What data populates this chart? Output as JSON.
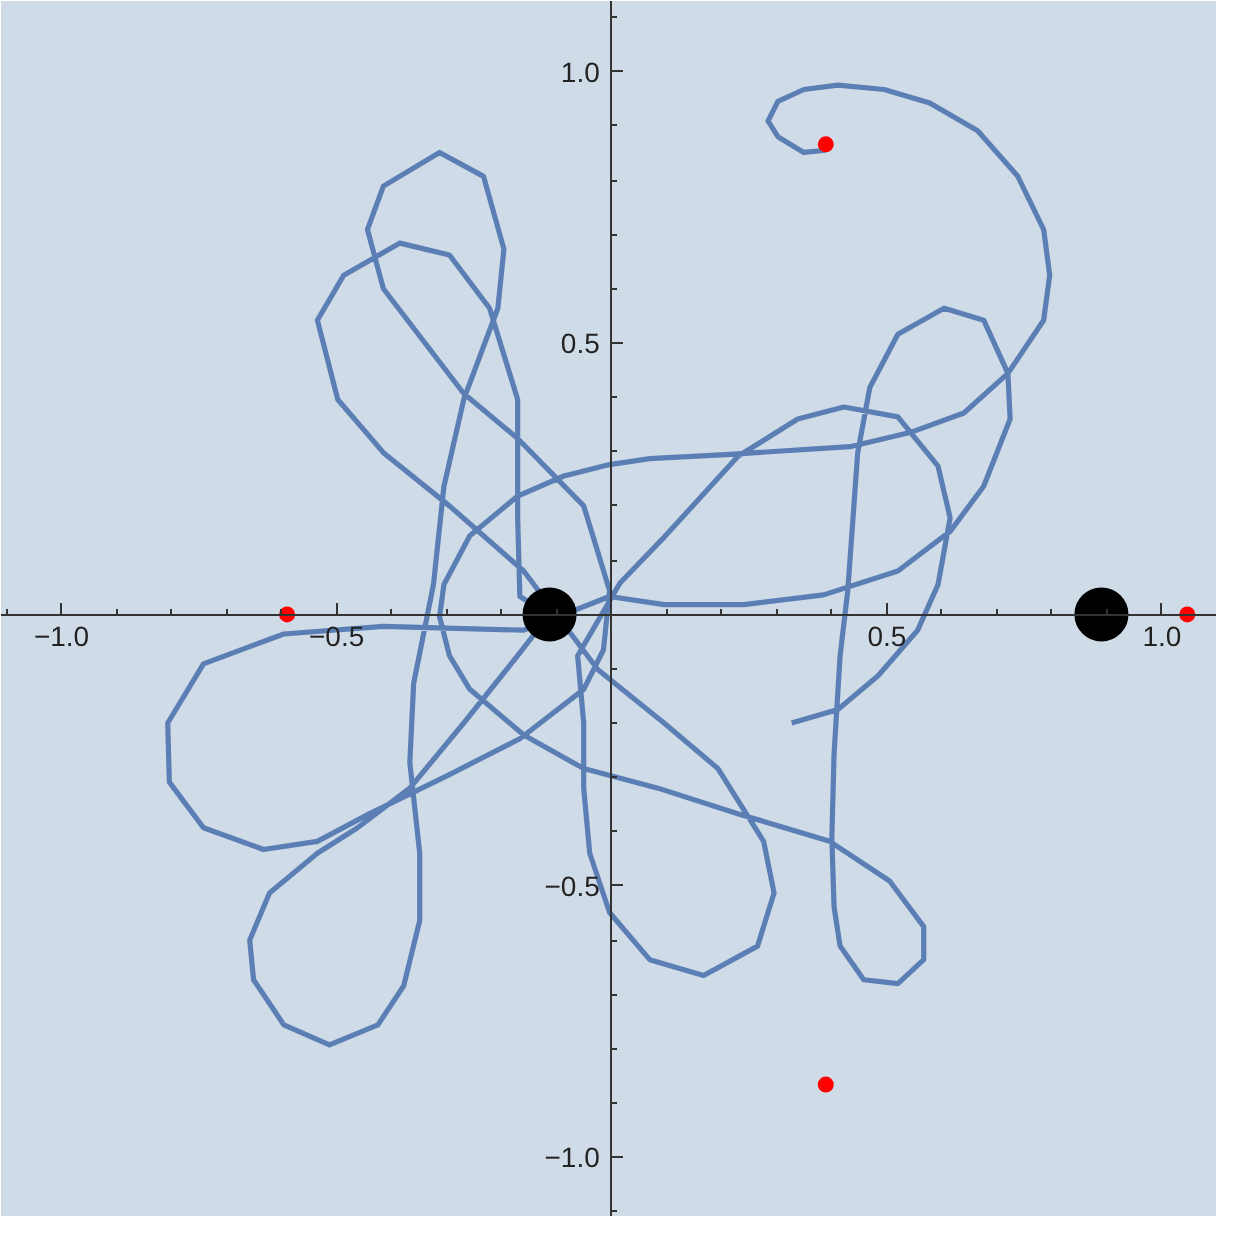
{
  "chart_data": {
    "type": "line",
    "xlim": [
      -1.11,
      1.1
    ],
    "ylim": [
      -1.11,
      1.13
    ],
    "xticks": [
      {
        "value": -1.1,
        "label": null
      },
      {
        "value": -1.0,
        "label": "−1.0"
      },
      {
        "value": -0.9,
        "label": null
      },
      {
        "value": -0.8,
        "label": null
      },
      {
        "value": -0.7,
        "label": null
      },
      {
        "value": -0.6,
        "label": null
      },
      {
        "value": -0.5,
        "label": "−0.5"
      },
      {
        "value": -0.4,
        "label": null
      },
      {
        "value": -0.3,
        "label": null
      },
      {
        "value": -0.2,
        "label": null
      },
      {
        "value": -0.1,
        "label": null
      },
      {
        "value": 0.1,
        "label": null
      },
      {
        "value": 0.2,
        "label": null
      },
      {
        "value": 0.3,
        "label": null
      },
      {
        "value": 0.4,
        "label": null
      },
      0.5,
      {
        "value": 0.6,
        "label": null
      },
      {
        "value": 0.7,
        "label": null
      },
      {
        "value": 0.8,
        "label": null
      },
      {
        "value": 0.9,
        "label": null
      },
      {
        "value": 1.0,
        "label": "1.0"
      },
      {
        "value": 1.1,
        "label": null
      }
    ],
    "yticks": [
      {
        "value": -1.1,
        "label": null
      },
      {
        "value": -1.0,
        "label": "−1.0"
      },
      {
        "value": -0.9,
        "label": null
      },
      {
        "value": -0.8,
        "label": null
      },
      {
        "value": -0.7,
        "label": null
      },
      {
        "value": -0.6,
        "label": null
      },
      {
        "value": -0.5,
        "label": "−0.5"
      },
      {
        "value": -0.4,
        "label": null
      },
      {
        "value": -0.3,
        "label": null
      },
      {
        "value": -0.2,
        "label": null
      },
      {
        "value": -0.1,
        "label": null
      },
      {
        "value": 0.1,
        "label": null
      },
      {
        "value": 0.2,
        "label": null
      },
      {
        "value": 0.3,
        "label": null
      },
      {
        "value": 0.4,
        "label": null
      },
      0.5,
      {
        "value": 0.6,
        "label": null
      },
      {
        "value": 0.7,
        "label": null
      },
      {
        "value": 0.8,
        "label": null
      },
      {
        "value": 0.9,
        "label": null
      },
      {
        "value": 1.0,
        "label": "1.0"
      },
      {
        "value": 1.1,
        "label": null
      }
    ],
    "grid": false,
    "series": [
      {
        "color": "#5b7fb5",
        "marker": "none",
        "line_style": "solid",
        "x": [
          0.389,
          0.349,
          0.302,
          0.284,
          0.302,
          0.349,
          0.411,
          0.495,
          0.578,
          0.665,
          0.738,
          0.785,
          0.796,
          0.785,
          0.72,
          0.64,
          0.542,
          0.433,
          0.215,
          0.069,
          -0.004,
          -0.087,
          -0.171,
          -0.258,
          -0.305,
          -0.313,
          -0.295,
          -0.258,
          -0.16,
          -0.051,
          0.084,
          0.229,
          0.396,
          0.505,
          0.567,
          0.567,
          0.52,
          0.458,
          0.415,
          0.404,
          0.4,
          0.404,
          0.415,
          0.429,
          0.447,
          0.469,
          0.52,
          0.604,
          0.676,
          0.72,
          0.724,
          0.676,
          0.615,
          0.52,
          0.385,
          0.24,
          0.095,
          -0.004,
          -0.16,
          -0.415,
          -0.596,
          -0.742,
          -0.807,
          -0.804,
          -0.742,
          -0.633,
          -0.535,
          -0.44,
          -0.295,
          -0.167,
          -0.051,
          -0.015,
          -0.004,
          -0.051,
          -0.171,
          -0.269,
          -0.415,
          -0.444,
          -0.415,
          -0.313,
          -0.233,
          -0.196,
          -0.207,
          -0.269,
          -0.305,
          -0.324,
          -0.36,
          -0.367,
          -0.349,
          -0.349,
          -0.378,
          -0.425,
          -0.513,
          -0.596,
          -0.651,
          -0.658,
          -0.622,
          -0.535,
          -0.462,
          -0.367,
          -0.269,
          -0.171,
          -0.113,
          -0.167,
          -0.171,
          -0.171,
          -0.222,
          -0.295,
          -0.385,
          -0.487,
          -0.535,
          -0.498,
          -0.415,
          -0.295,
          -0.16,
          -0.025,
          0.095,
          0.193,
          0.276,
          0.295,
          0.265,
          0.167,
          0.069,
          -0.004,
          -0.04,
          -0.051,
          -0.051,
          -0.062,
          0.015,
          0.095,
          0.229,
          0.338,
          0.422,
          0.52,
          0.593,
          0.615,
          0.593,
          0.556,
          0.484,
          0.411,
          0.327
        ],
        "values": [
          0.855,
          0.851,
          0.88,
          0.909,
          0.945,
          0.967,
          0.975,
          0.967,
          0.942,
          0.891,
          0.807,
          0.709,
          0.625,
          0.542,
          0.444,
          0.371,
          0.335,
          0.309,
          0.295,
          0.287,
          0.276,
          0.255,
          0.218,
          0.145,
          0.055,
          -0.004,
          -0.076,
          -0.138,
          -0.222,
          -0.284,
          -0.32,
          -0.367,
          -0.418,
          -0.491,
          -0.575,
          -0.636,
          -0.68,
          -0.673,
          -0.611,
          -0.538,
          -0.411,
          -0.258,
          -0.076,
          0.044,
          0.298,
          0.418,
          0.516,
          0.564,
          0.542,
          0.444,
          0.36,
          0.236,
          0.153,
          0.08,
          0.036,
          0.018,
          0.018,
          0.033,
          -0.029,
          -0.022,
          -0.036,
          -0.091,
          -0.2,
          -0.309,
          -0.393,
          -0.433,
          -0.418,
          -0.367,
          -0.295,
          -0.229,
          -0.138,
          -0.065,
          0.044,
          0.2,
          0.324,
          0.407,
          0.6,
          0.709,
          0.789,
          0.851,
          0.807,
          0.673,
          0.564,
          0.396,
          0.236,
          0.055,
          -0.127,
          -0.273,
          -0.44,
          -0.564,
          -0.684,
          -0.756,
          -0.793,
          -0.756,
          -0.673,
          -0.6,
          -0.513,
          -0.44,
          -0.393,
          -0.32,
          -0.2,
          -0.076,
          0.0,
          0.033,
          0.178,
          0.396,
          0.564,
          0.662,
          0.684,
          0.625,
          0.542,
          0.396,
          0.298,
          0.2,
          0.08,
          -0.102,
          -0.2,
          -0.284,
          -0.418,
          -0.513,
          -0.611,
          -0.665,
          -0.636,
          -0.549,
          -0.44,
          -0.32,
          -0.2,
          -0.076,
          0.058,
          0.142,
          0.291,
          0.36,
          0.382,
          0.364,
          0.273,
          0.178,
          0.055,
          -0.029,
          -0.113,
          -0.175,
          -0.2
        ]
      },
      {
        "type": "scatter",
        "color": "#000000",
        "marker": "circle",
        "x": [
          -0.113,
          0.89
        ],
        "values": [
          0,
          0
        ]
      },
      {
        "type": "scatter",
        "color": "#ff0000",
        "marker": "circle",
        "x": [
          -0.59,
          1.046,
          0.389,
          0.389
        ],
        "values": [
          0,
          0,
          0.866,
          -0.866
        ]
      }
    ]
  }
}
